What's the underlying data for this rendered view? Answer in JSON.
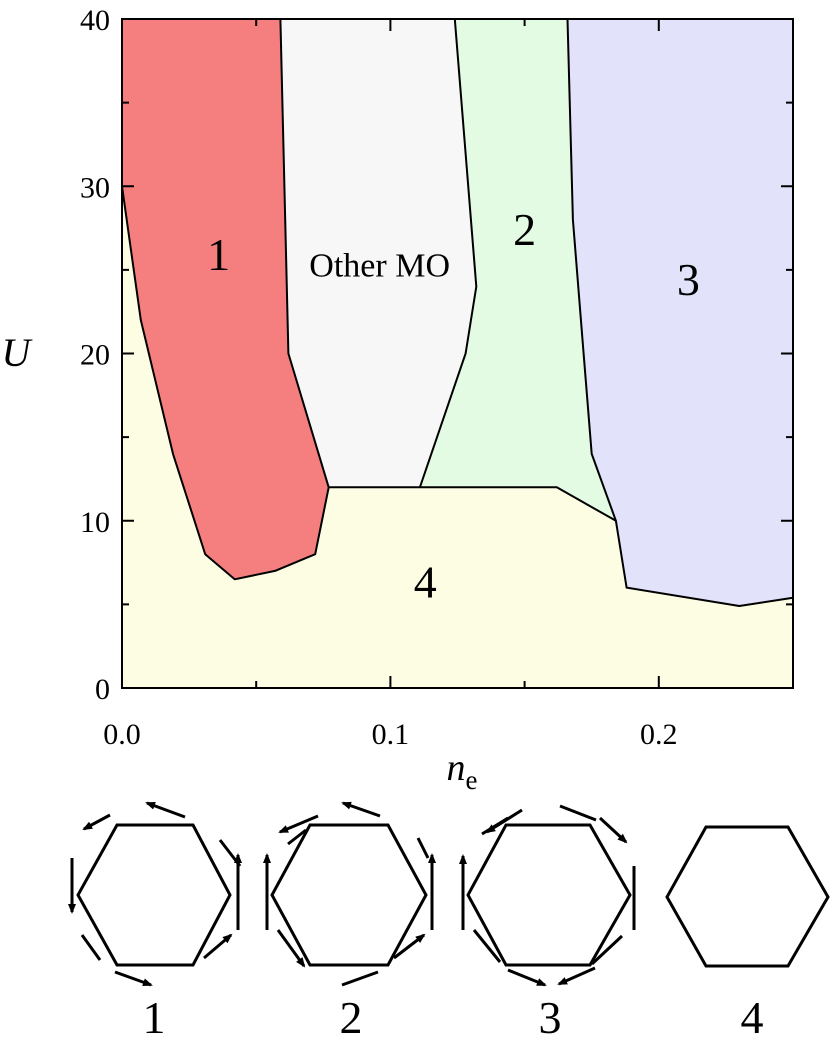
{
  "chart_data": {
    "type": "area",
    "title": "",
    "xlabel_main": "n",
    "xlabel_sub": "e",
    "ylabel": "U",
    "xlim": [
      0.0,
      0.25
    ],
    "ylim": [
      0,
      40
    ],
    "xticks": [
      "0.0",
      "0.1",
      "0.2"
    ],
    "xtick_values": [
      0.0,
      0.1,
      0.2
    ],
    "yticks": [
      "0",
      "10",
      "20",
      "30",
      "40"
    ],
    "ytick_values": [
      0,
      10,
      20,
      30,
      40
    ],
    "grid": false,
    "regions": [
      {
        "label": "4",
        "color": "#fdfde4",
        "label_at": [
          0.113,
          5.4
        ],
        "boundary": [
          [
            0.0,
            0
          ],
          [
            0.25,
            0
          ],
          [
            0.25,
            40
          ],
          [
            0.0,
            40
          ]
        ]
      },
      {
        "label": "Other MO",
        "color": "#f7f7f7",
        "label_at": [
          0.096,
          24.6
        ],
        "boundary": [
          [
            0.059,
            40
          ],
          [
            0.124,
            40
          ],
          [
            0.132,
            24
          ],
          [
            0.128,
            20
          ],
          [
            0.111,
            12
          ],
          [
            0.077,
            12
          ],
          [
            0.062,
            20
          ]
        ]
      },
      {
        "label": "2",
        "color": "#e2fbe2",
        "label_at": [
          0.15,
          26.5
        ],
        "boundary": [
          [
            0.124,
            40
          ],
          [
            0.166,
            40
          ],
          [
            0.168,
            28
          ],
          [
            0.172,
            20
          ],
          [
            0.175,
            14
          ],
          [
            0.184,
            10
          ],
          [
            0.162,
            12
          ],
          [
            0.111,
            12
          ],
          [
            0.128,
            20
          ],
          [
            0.132,
            24
          ]
        ]
      },
      {
        "label": "3",
        "color": "#e2e2fa",
        "label_at": [
          0.211,
          23.5
        ],
        "boundary": [
          [
            0.166,
            40
          ],
          [
            0.25,
            40
          ],
          [
            0.25,
            5.4
          ],
          [
            0.23,
            4.9
          ],
          [
            0.188,
            6.0
          ],
          [
            0.184,
            10
          ],
          [
            0.175,
            14
          ],
          [
            0.172,
            20
          ],
          [
            0.168,
            28
          ]
        ]
      },
      {
        "label": "1",
        "color": "#f57f7f",
        "label_at": [
          0.036,
          25
        ],
        "boundary": [
          [
            0.0,
            40
          ],
          [
            0.059,
            40
          ],
          [
            0.062,
            20
          ],
          [
            0.077,
            12
          ],
          [
            0.072,
            8
          ],
          [
            0.057,
            7
          ],
          [
            0.042,
            6.5
          ],
          [
            0.031,
            8
          ],
          [
            0.019,
            14
          ],
          [
            0.007,
            22
          ],
          [
            0.0,
            30
          ]
        ]
      }
    ],
    "lines": [
      [
        [
          0.0,
          40
        ],
        [
          0.0,
          30
        ],
        [
          0.007,
          22
        ],
        [
          0.019,
          14
        ],
        [
          0.031,
          8
        ],
        [
          0.042,
          6.5
        ],
        [
          0.057,
          7
        ],
        [
          0.072,
          8
        ],
        [
          0.077,
          12
        ]
      ],
      [
        [
          0.059,
          40
        ],
        [
          0.062,
          20
        ],
        [
          0.077,
          12
        ]
      ],
      [
        [
          0.077,
          12
        ],
        [
          0.162,
          12
        ],
        [
          0.184,
          10
        ]
      ],
      [
        [
          0.124,
          40
        ],
        [
          0.132,
          24
        ],
        [
          0.128,
          20
        ],
        [
          0.111,
          12
        ]
      ],
      [
        [
          0.166,
          40
        ],
        [
          0.168,
          28
        ],
        [
          0.172,
          20
        ],
        [
          0.175,
          14
        ],
        [
          0.184,
          10
        ],
        [
          0.188,
          6.0
        ],
        [
          0.23,
          4.9
        ],
        [
          0.25,
          5.4
        ]
      ]
    ]
  },
  "spin_diagrams": [
    {
      "label": "1",
      "arrows": "ccw-vortex-with-flip"
    },
    {
      "label": "2",
      "arrows": "ccw-vortex"
    },
    {
      "label": "3",
      "arrows": "cw-vortex"
    },
    {
      "label": "4",
      "arrows": "none"
    }
  ]
}
